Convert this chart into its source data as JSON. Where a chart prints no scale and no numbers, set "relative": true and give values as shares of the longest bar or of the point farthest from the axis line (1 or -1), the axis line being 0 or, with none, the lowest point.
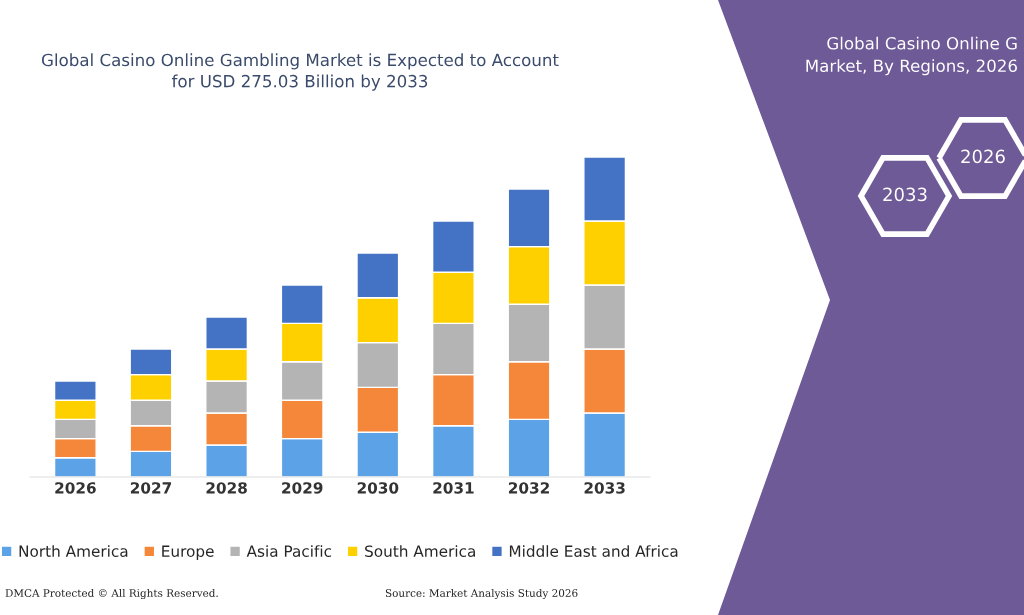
{
  "chart_data": {
    "type": "bar",
    "stacked": true,
    "relative": true,
    "title": "Global Casino Online Gambling Market is Expected to Account\nfor USD 275.03 Billion by 2033",
    "categories": [
      "2026",
      "2027",
      "2028",
      "2029",
      "2030",
      "2031",
      "2032",
      "2033"
    ],
    "series": [
      {
        "name": "North America",
        "color": "#5ba3e6",
        "values": [
          0.06,
          0.08,
          0.1,
          0.12,
          0.14,
          0.16,
          0.18,
          0.2
        ]
      },
      {
        "name": "Europe",
        "color": "#f4873a",
        "values": [
          0.06,
          0.08,
          0.1,
          0.12,
          0.14,
          0.16,
          0.18,
          0.2
        ]
      },
      {
        "name": "Asia Pacific",
        "color": "#b4b4b4",
        "values": [
          0.06,
          0.08,
          0.1,
          0.12,
          0.14,
          0.16,
          0.18,
          0.2
        ]
      },
      {
        "name": "South America",
        "color": "#ffd000",
        "values": [
          0.06,
          0.08,
          0.1,
          0.12,
          0.14,
          0.16,
          0.18,
          0.2
        ]
      },
      {
        "name": "Middle East and Africa",
        "color": "#4472c4",
        "values": [
          0.06,
          0.08,
          0.1,
          0.12,
          0.14,
          0.16,
          0.18,
          0.2
        ]
      }
    ],
    "legend": "bottom",
    "grid": false,
    "tick_labels": "x",
    "annotations": [
      "Global Casino Online G\nMarket, By Regions, 2026",
      "2026",
      "2033",
      "DMCA Protected © All Rights Reserved.",
      "Source: Market Analysis Study 2026"
    ]
  }
}
